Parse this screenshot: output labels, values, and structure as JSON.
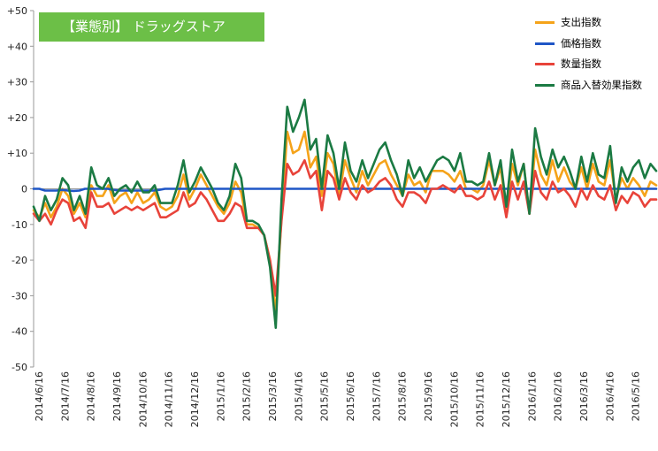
{
  "chart_data": {
    "type": "line",
    "title": "【業態別】 ドラッグストア",
    "xlabel": "",
    "ylabel": "",
    "ylim": [
      -50,
      50
    ],
    "y_ticks": [
      50,
      40,
      30,
      20,
      10,
      0,
      -10,
      -20,
      -30,
      -40,
      -50
    ],
    "y_tick_labels": [
      "+50",
      "+40",
      "+30",
      "+20",
      "+10",
      "0",
      "-10",
      "-20",
      "-30",
      "-40",
      "-50"
    ],
    "x_tick_labels": [
      "2014/6/16",
      "2014/7/16",
      "2014/8/16",
      "2014/9/16",
      "2014/10/16",
      "2014/11/16",
      "2014/12/16",
      "2015/1/16",
      "2015/2/16",
      "2015/3/16",
      "2015/4/16",
      "2015/5/16",
      "2015/6/16",
      "2015/7/16",
      "2015/8/16",
      "2015/9/16",
      "2015/10/16",
      "2015/11/16",
      "2015/12/16",
      "2016/1/16",
      "2016/2/16",
      "2016/3/16",
      "2016/4/16",
      "2016/5/16"
    ],
    "grid": false,
    "legend_position": "top-right",
    "series": [
      {
        "name": "支出指数",
        "color": "#f5a31a",
        "values": [
          -6,
          -8,
          -4,
          -8,
          -5,
          0,
          -2,
          -7,
          -4,
          -8,
          1,
          -2,
          -2,
          1,
          -4,
          -2,
          -1,
          -4,
          -1,
          -4,
          -3,
          -1,
          -5,
          -6,
          -5,
          -2,
          4,
          -3,
          0,
          4,
          1,
          -2,
          -5,
          -7,
          -4,
          2,
          -1,
          -10,
          -10,
          -11,
          -13,
          -20,
          -35,
          -8,
          16,
          10,
          11,
          16,
          6,
          9,
          -2,
          10,
          7,
          -2,
          8,
          3,
          -1,
          5,
          1,
          4,
          7,
          8,
          4,
          1,
          -2,
          4,
          1,
          2,
          -1,
          5,
          5,
          5,
          4,
          2,
          5,
          0,
          0,
          -1,
          1,
          8,
          1,
          6,
          -6,
          7,
          1,
          7,
          -7,
          11,
          4,
          1,
          8,
          2,
          6,
          2,
          0,
          6,
          0,
          7,
          2,
          1,
          8,
          -3,
          3,
          0,
          3,
          1,
          -2,
          2,
          1
        ]
      },
      {
        "name": "価格指数",
        "color": "#1f56c6",
        "values": [
          0,
          0,
          -0.5,
          -0.5,
          -0.5,
          -0.3,
          -0.5,
          -0.6,
          -0.5,
          0,
          0,
          0,
          0,
          0,
          -0.3,
          -0.5,
          -0.5,
          -0.5,
          -0.5,
          -0.5,
          -0.5,
          -0.5,
          -0.3,
          0,
          0,
          0,
          0,
          0,
          0,
          0,
          0,
          0,
          0,
          0,
          0,
          0,
          0,
          0,
          0,
          0,
          0,
          0,
          0,
          0,
          0,
          0,
          0,
          0,
          0,
          0,
          0,
          0,
          0,
          0,
          0,
          0,
          0,
          0,
          0,
          0,
          0,
          0,
          0,
          0,
          0,
          0,
          0,
          0,
          0,
          0,
          0,
          0,
          0,
          0,
          0,
          0,
          0,
          0,
          0,
          0,
          0,
          0,
          0,
          0,
          0,
          0,
          0,
          0,
          0,
          0,
          0,
          0,
          0,
          0,
          0,
          0,
          0,
          0,
          0,
          0,
          0,
          0,
          0,
          0,
          0,
          0,
          0,
          0,
          0,
          0
        ]
      },
      {
        "name": "数量指数",
        "color": "#e8433a",
        "values": [
          -7,
          -9,
          -7,
          -10,
          -6,
          -3,
          -4,
          -9,
          -8,
          -11,
          -1,
          -5,
          -5,
          -4,
          -7,
          -6,
          -5,
          -6,
          -5,
          -6,
          -5,
          -4,
          -8,
          -8,
          -7,
          -6,
          -1,
          -5,
          -4,
          -1,
          -3,
          -6,
          -9,
          -9,
          -7,
          -4,
          -5,
          -11,
          -11,
          -11,
          -13,
          -20,
          -30,
          -9,
          7,
          4,
          5,
          8,
          3,
          5,
          -6,
          5,
          3,
          -3,
          3,
          -1,
          -3,
          1,
          -1,
          0,
          2,
          3,
          1,
          -3,
          -5,
          -1,
          -1,
          -2,
          -4,
          0,
          0,
          1,
          0,
          -1,
          1,
          -2,
          -2,
          -3,
          -2,
          2,
          -3,
          1,
          -8,
          2,
          -3,
          2,
          -7,
          5,
          -1,
          -3,
          2,
          -1,
          0,
          -2,
          -5,
          0,
          -3,
          1,
          -2,
          -3,
          1,
          -6,
          -2,
          -4,
          -1,
          -2,
          -5,
          -3,
          -3
        ]
      },
      {
        "name": "商品入替効果指数",
        "color": "#1b7a43",
        "values": [
          -5,
          -9,
          -2,
          -6,
          -3,
          3,
          1,
          -6,
          -2,
          -7,
          6,
          1,
          0,
          3,
          -2,
          0,
          1,
          -1,
          2,
          -1,
          -1,
          1,
          -4,
          -4,
          -4,
          1,
          8,
          -1,
          2,
          6,
          3,
          0,
          -4,
          -6,
          -2,
          7,
          3,
          -9,
          -9,
          -10,
          -13,
          -22,
          -39,
          -3,
          23,
          16,
          20,
          25,
          11,
          14,
          0,
          15,
          10,
          0,
          13,
          5,
          2,
          8,
          3,
          7,
          11,
          13,
          8,
          4,
          -2,
          8,
          3,
          6,
          2,
          5,
          8,
          9,
          8,
          5,
          10,
          2,
          2,
          1,
          2,
          10,
          1,
          8,
          -5,
          11,
          2,
          7,
          -7,
          17,
          9,
          4,
          11,
          6,
          9,
          5,
          0,
          9,
          2,
          10,
          4,
          3,
          12,
          -4,
          6,
          2,
          6,
          8,
          3,
          7,
          5
        ]
      }
    ]
  }
}
